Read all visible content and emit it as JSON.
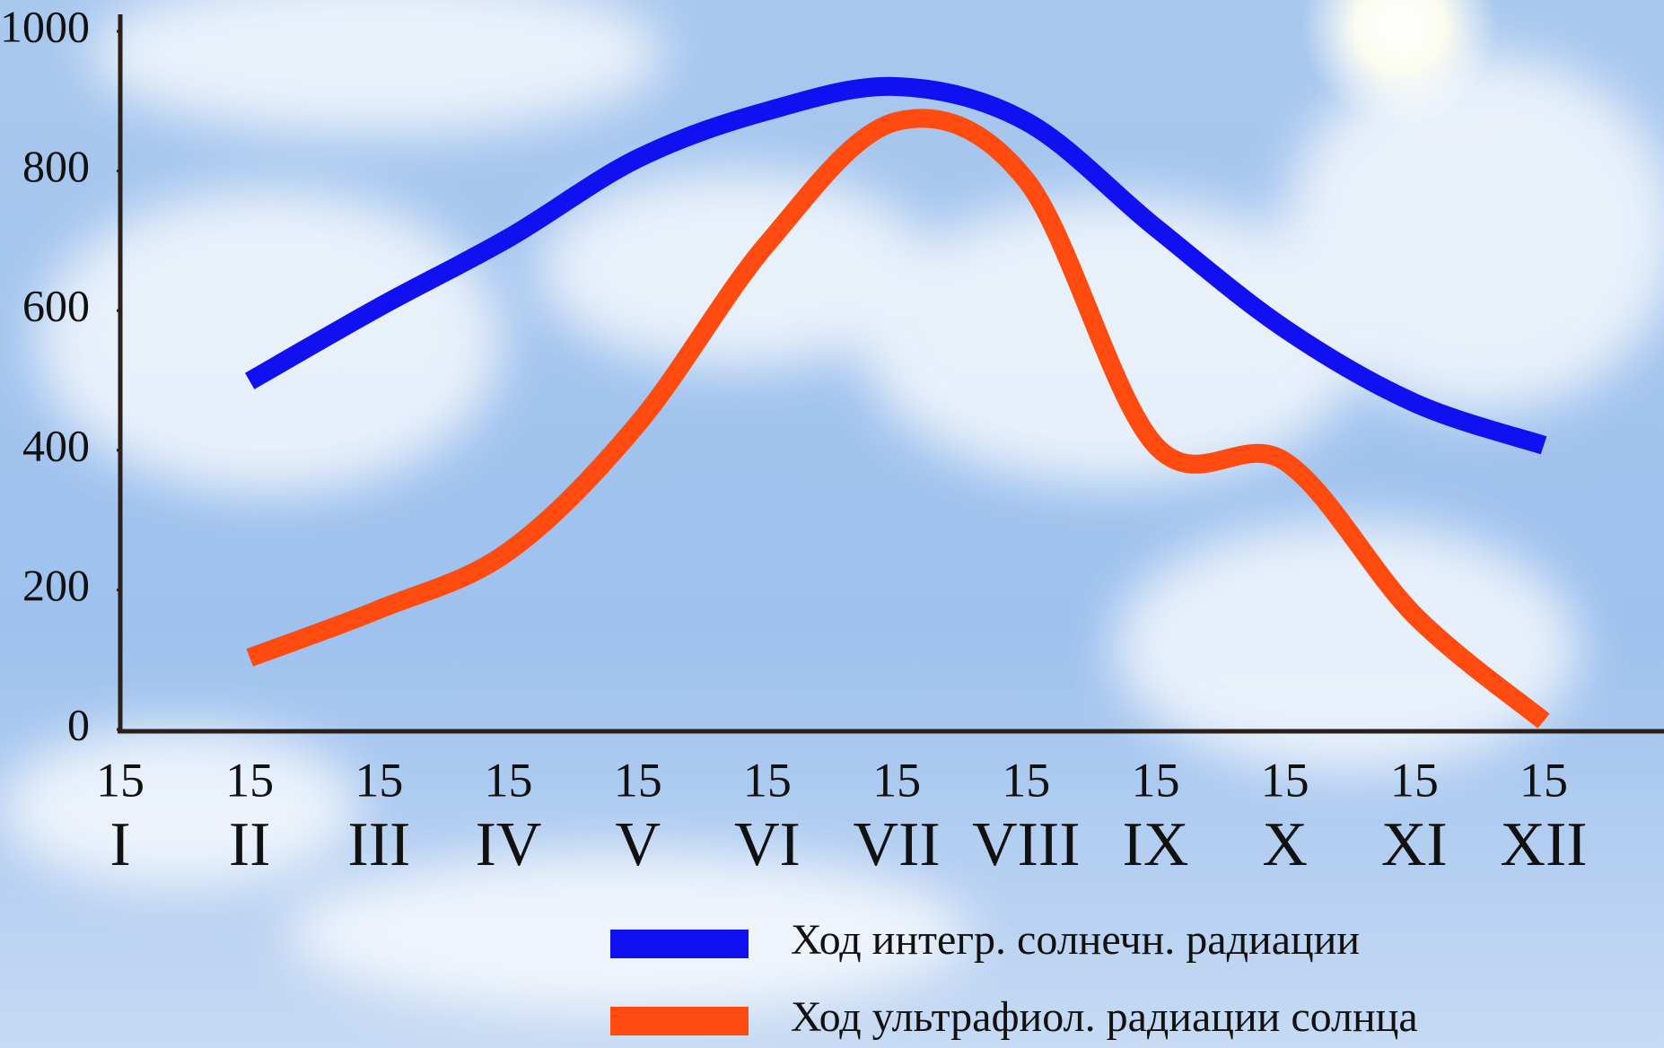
{
  "chart_data": {
    "type": "line",
    "categories": [
      {
        "day": "15",
        "month": "I"
      },
      {
        "day": "15",
        "month": "II"
      },
      {
        "day": "15",
        "month": "III"
      },
      {
        "day": "15",
        "month": "IV"
      },
      {
        "day": "15",
        "month": "V"
      },
      {
        "day": "15",
        "month": "VI"
      },
      {
        "day": "15",
        "month": "VII"
      },
      {
        "day": "15",
        "month": "VIII"
      },
      {
        "day": "15",
        "month": "IX"
      },
      {
        "day": "15",
        "month": "X"
      },
      {
        "day": "15",
        "month": "XI"
      },
      {
        "day": "15",
        "month": "XII"
      }
    ],
    "series": [
      {
        "name": "Ход интегр. солнечн. радиации",
        "color": "#1010f0",
        "values": [
          null,
          499,
          605,
          704,
          818,
          886,
          921,
          871,
          719,
          574,
          468,
          407
        ]
      },
      {
        "name": "Ход ультрафиол. радиации солнца",
        "color": "#ff4a10",
        "values": [
          null,
          103,
          172,
          255,
          438,
          696,
          871,
          787,
          407,
          384,
          164,
          12
        ]
      }
    ],
    "ylim": [
      0,
      1000
    ],
    "yticks": [
      0,
      200,
      400,
      600,
      800,
      1000
    ]
  }
}
